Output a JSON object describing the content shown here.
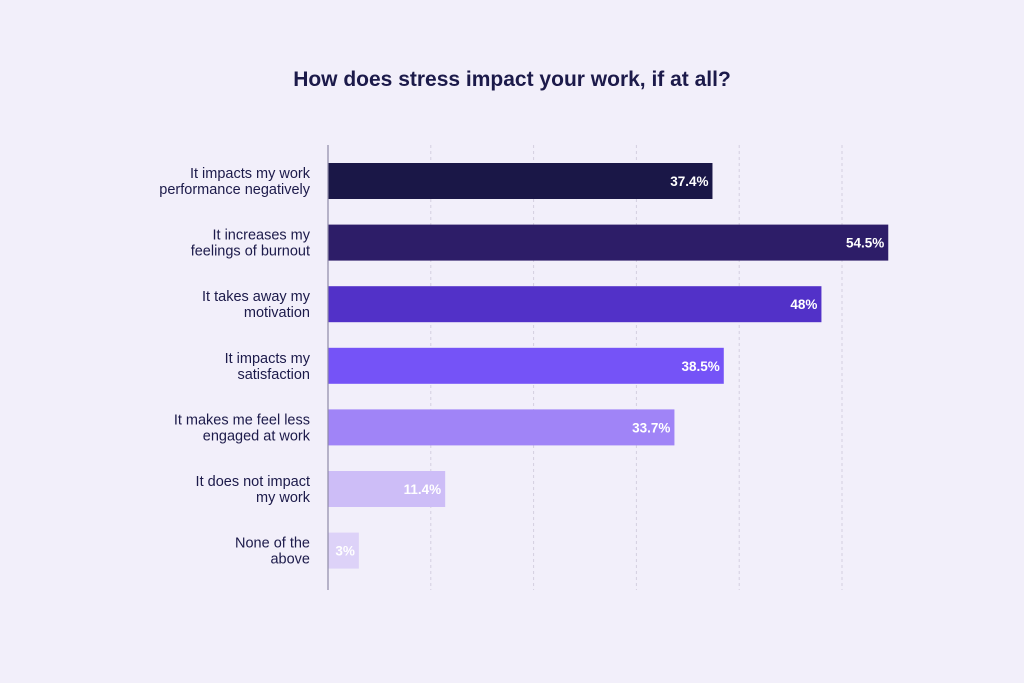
{
  "chart_data": {
    "type": "bar",
    "orientation": "horizontal",
    "title": "How does stress impact your work, if at all?",
    "xlabel": "",
    "ylabel": "",
    "xlim": [
      0,
      60
    ],
    "grid": true,
    "categories": [
      [
        "It impacts my work",
        "performance negatively"
      ],
      [
        "It increases my",
        "feelings of burnout"
      ],
      [
        "It takes away my",
        "motivation"
      ],
      [
        "It impacts my",
        "satisfaction"
      ],
      [
        "It makes me feel less",
        "engaged at work"
      ],
      [
        "It does not impact",
        "my work"
      ],
      [
        "None of the",
        "above"
      ]
    ],
    "values": [
      37.4,
      54.5,
      48,
      38.5,
      33.7,
      11.4,
      3
    ],
    "value_labels": [
      "37.4%",
      "54.5%",
      "48%",
      "38.5%",
      "33.7%",
      "11.4%",
      "3%"
    ],
    "colors": [
      "#1a1747",
      "#2d1d68",
      "#5231c8",
      "#7553f7",
      "#a084f7",
      "#cdbdf7",
      "#ddd2f8"
    ]
  }
}
